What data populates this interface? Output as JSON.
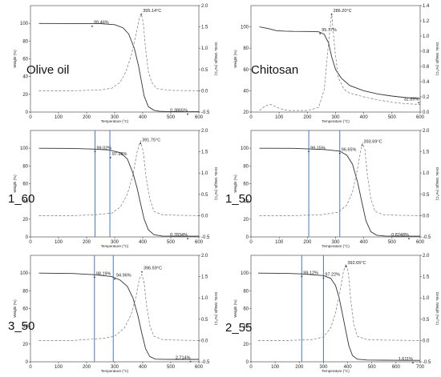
{
  "chart_data": [
    {
      "type": "line",
      "label": "Olive oil",
      "xlabel": "Temperature (°C)",
      "ylabel": "Weight (%)",
      "y2label": "Deriv. Weight (%/°C)",
      "xlim": [
        0,
        600
      ],
      "ylim": [
        0,
        120
      ],
      "y2lim": [
        -0.5,
        2.0
      ],
      "xticks": [
        "0",
        "100",
        "200",
        "300",
        "400",
        "500",
        "600"
      ],
      "yticks": [
        "0",
        "20",
        "40",
        "60",
        "80",
        "100"
      ],
      "y2ticks": [
        "-0.5",
        "0.0",
        "0.5",
        "1.0",
        "1.5",
        "2.0"
      ],
      "series": [
        {
          "axis": "left",
          "style": "solid",
          "x": [
            30,
            150,
            250,
            300,
            330,
            350,
            370,
            385,
            395,
            405,
            420,
            440,
            460,
            500,
            600
          ],
          "y": [
            99.9,
            99.8,
            99.6,
            98.5,
            95,
            88,
            72,
            52,
            35,
            18,
            6,
            2,
            0.8,
            0.4,
            0.39
          ]
        },
        {
          "axis": "right",
          "style": "dashed",
          "x": [
            30,
            150,
            250,
            290,
            320,
            340,
            360,
            375,
            388,
            395,
            402,
            410,
            420,
            432,
            450,
            500,
            600
          ],
          "y": [
            0,
            0,
            0.02,
            0.06,
            0.2,
            0.45,
            0.85,
            1.3,
            1.7,
            1.8,
            1.6,
            1.0,
            0.45,
            0.2,
            0.05,
            0.01,
            0
          ]
        }
      ],
      "annotations": [
        {
          "text": "99.46%",
          "x": 220,
          "y": 99.5
        },
        {
          "text": "395.14°C",
          "x": 395,
          "y": 113
        },
        {
          "text": "0.3865%",
          "x": 560,
          "y": 0.39
        }
      ],
      "vlines": []
    },
    {
      "type": "line",
      "label": "Chitosan",
      "xlabel": "Temperature (°C)",
      "ylabel": "Weight (%)",
      "y2label": "Deriv. Weight (%/°C)",
      "xlim": [
        0,
        600
      ],
      "ylim": [
        20,
        120
      ],
      "y2lim": [
        0,
        1.4
      ],
      "xticks": [
        "0",
        "100",
        "200",
        "300",
        "400",
        "500",
        "600"
      ],
      "yticks": [
        "20",
        "40",
        "60",
        "80",
        "100"
      ],
      "y2ticks": [
        "0.0",
        "0.2",
        "0.4",
        "0.6",
        "0.8",
        "1.0",
        "1.2",
        "1.4"
      ],
      "series": [
        {
          "axis": "left",
          "style": "solid",
          "x": [
            30,
            60,
            90,
            120,
            150,
            200,
            240,
            260,
            275,
            286,
            300,
            320,
            350,
            400,
            450,
            500,
            550,
            600
          ],
          "y": [
            100,
            98.5,
            96.5,
            96,
            95.8,
            95.7,
            95.4,
            93,
            85,
            72,
            60,
            52,
            45,
            40,
            37,
            35,
            33.5,
            32.8
          ]
        },
        {
          "axis": "right",
          "style": "dashed",
          "x": [
            30,
            50,
            70,
            100,
            130,
            200,
            240,
            260,
            275,
            286,
            298,
            310,
            330,
            350,
            400,
            450,
            500,
            550,
            600
          ],
          "y": [
            0.02,
            0.08,
            0.1,
            0.05,
            0.02,
            0.02,
            0.06,
            0.3,
            0.9,
            1.3,
            0.8,
            0.45,
            0.3,
            0.25,
            0.2,
            0.16,
            0.13,
            0.11,
            0.1
          ]
        }
      ],
      "annotations": [
        {
          "text": "95.77%",
          "x": 245,
          "y": 96
        },
        {
          "text": "286.20°C",
          "x": 286,
          "y": 114
        },
        {
          "text": "32.89%",
          "x": 595,
          "y": 31
        }
      ],
      "vlines": []
    },
    {
      "type": "line",
      "label": "1_60",
      "xlabel": "Temperature (°C)",
      "ylabel": "Weight (%)",
      "y2label": "Deriv. Weight (%/°C)",
      "xlim": [
        0,
        600
      ],
      "ylim": [
        0,
        120
      ],
      "y2lim": [
        -0.5,
        2.0
      ],
      "xticks": [
        "0",
        "100",
        "200",
        "300",
        "400",
        "500",
        "600"
      ],
      "yticks": [
        "0",
        "20",
        "40",
        "60",
        "80",
        "100"
      ],
      "y2ticks": [
        "-0.5",
        "0.0",
        "0.5",
        "1.0",
        "1.5",
        "2.0"
      ],
      "series": [
        {
          "axis": "left",
          "style": "solid",
          "x": [
            30,
            150,
            230,
            280,
            320,
            345,
            365,
            380,
            392,
            405,
            420,
            440,
            470,
            520,
            600
          ],
          "y": [
            100,
            99.8,
            99,
            98,
            95,
            88,
            72,
            55,
            38,
            20,
            8,
            2.5,
            1,
            0.8,
            0.78
          ]
        },
        {
          "axis": "right",
          "style": "dashed",
          "x": [
            30,
            150,
            230,
            290,
            320,
            345,
            365,
            380,
            392,
            402,
            412,
            425,
            440,
            470,
            520,
            600
          ],
          "y": [
            0,
            0,
            0.02,
            0.06,
            0.2,
            0.5,
            0.95,
            1.5,
            1.75,
            1.5,
            0.9,
            0.4,
            0.1,
            0.02,
            0.01,
            0
          ]
        }
      ],
      "annotations": [
        {
          "text": "99.02%",
          "x": 230,
          "y": 99
        },
        {
          "text": "97.98%",
          "x": 285,
          "y": 92
        },
        {
          "text": "391.75°C",
          "x": 392,
          "y": 108
        },
        {
          "text": "0.7834%",
          "x": 560,
          "y": 0.78
        }
      ],
      "vlines": [
        230,
        283
      ]
    },
    {
      "type": "line",
      "label": "1_50",
      "xlabel": "Temperature (°C)",
      "ylabel": "Weight (%)",
      "y2label": "Deriv. Weight (%/°C)",
      "xlim": [
        0,
        600
      ],
      "ylim": [
        0,
        120
      ],
      "y2lim": [
        -0.5,
        2.0
      ],
      "xticks": [
        "0",
        "100",
        "200",
        "300",
        "400",
        "500",
        "600"
      ],
      "yticks": [
        "0",
        "20",
        "40",
        "60",
        "80",
        "100"
      ],
      "y2ticks": [
        "-0.5",
        "0.0",
        "0.5",
        "1.0",
        "1.5",
        "2.0"
      ],
      "series": [
        {
          "axis": "left",
          "style": "solid",
          "x": [
            30,
            150,
            205,
            260,
            315,
            340,
            360,
            378,
            394,
            408,
            425,
            445,
            475,
            520,
            600
          ],
          "y": [
            100,
            99.9,
            99.2,
            98.5,
            96.7,
            92,
            82,
            62,
            38,
            18,
            6,
            2,
            1,
            0.85,
            0.82
          ]
        },
        {
          "axis": "right",
          "style": "dashed",
          "x": [
            30,
            150,
            250,
            310,
            340,
            360,
            378,
            390,
            396,
            404,
            412,
            425,
            440,
            470,
            520,
            600
          ],
          "y": [
            0,
            0,
            0.02,
            0.08,
            0.25,
            0.55,
            1.1,
            1.55,
            1.7,
            1.55,
            1.0,
            0.4,
            0.1,
            0.02,
            0.01,
            0
          ]
        }
      ],
      "annotations": [
        {
          "text": "99.15%",
          "x": 205,
          "y": 99
        },
        {
          "text": "96.65%",
          "x": 315,
          "y": 97
        },
        {
          "text": "393.69°C",
          "x": 394,
          "y": 106
        },
        {
          "text": "0.8248%",
          "x": 560,
          "y": 0.82
        }
      ],
      "vlines": [
        205,
        315
      ]
    },
    {
      "type": "line",
      "label": "3_50",
      "xlabel": "Temperature (°C)",
      "ylabel": "Weight (%)",
      "y2label": "Deriv. Weight (%/°C)",
      "xlim": [
        0,
        600
      ],
      "ylim": [
        0,
        120
      ],
      "y2lim": [
        -0.5,
        2.0
      ],
      "xticks": [
        "0",
        "100",
        "200",
        "300",
        "400",
        "500",
        "600"
      ],
      "yticks": [
        "0",
        "20",
        "40",
        "60",
        "80",
        "100"
      ],
      "y2ticks": [
        "-0.5",
        "0.0",
        "0.5",
        "1.0",
        "1.5",
        "2.0"
      ],
      "series": [
        {
          "axis": "left",
          "style": "solid",
          "x": [
            30,
            150,
            228,
            290,
            320,
            345,
            365,
            383,
            397,
            410,
            425,
            445,
            475,
            520,
            600
          ],
          "y": [
            100,
            99.5,
            98.2,
            96,
            92,
            85,
            72,
            52,
            32,
            15,
            6,
            3,
            2.8,
            2.75,
            2.71
          ]
        },
        {
          "axis": "right",
          "style": "dashed",
          "x": [
            30,
            150,
            260,
            300,
            335,
            358,
            375,
            388,
            397,
            405,
            413,
            425,
            440,
            470,
            520,
            600
          ],
          "y": [
            0,
            0,
            0.05,
            0.1,
            0.3,
            0.6,
            1.0,
            1.45,
            1.55,
            1.35,
            0.85,
            0.35,
            0.1,
            0.02,
            0.01,
            0
          ]
        }
      ],
      "annotations": [
        {
          "text": "98.19%",
          "x": 228,
          "y": 98
        },
        {
          "text": "94.96%",
          "x": 300,
          "y": 96
        },
        {
          "text": "396.59°C",
          "x": 397,
          "y": 104
        },
        {
          "text": "2.714%",
          "x": 570,
          "y": 3
        }
      ],
      "vlines": [
        228,
        295
      ]
    },
    {
      "type": "line",
      "label": "2_55",
      "xlabel": "Temperature (°C)",
      "ylabel": "Weight (%)",
      "y2label": "Deriv. Weight (%/°C)",
      "xlim": [
        0,
        700
      ],
      "ylim": [
        0,
        120
      ],
      "y2lim": [
        -0.5,
        2.0
      ],
      "xticks": [
        "0",
        "100",
        "200",
        "300",
        "400",
        "500",
        "600",
        "700"
      ],
      "yticks": [
        "0",
        "20",
        "40",
        "60",
        "80",
        "100"
      ],
      "y2ticks": [
        "-0.5",
        "0.0",
        "0.5",
        "1.0",
        "1.5",
        "2.0"
      ],
      "series": [
        {
          "axis": "left",
          "style": "solid",
          "x": [
            30,
            150,
            210,
            300,
            330,
            350,
            365,
            380,
            393,
            405,
            420,
            440,
            480,
            550,
            650,
            700
          ],
          "y": [
            100,
            99.6,
            99.1,
            97.2,
            94,
            86,
            72,
            52,
            34,
            18,
            7,
            3,
            2,
            1.8,
            1.6,
            1.61
          ]
        },
        {
          "axis": "right",
          "style": "dashed",
          "x": [
            30,
            150,
            250,
            300,
            330,
            350,
            368,
            382,
            393,
            403,
            412,
            425,
            440,
            480,
            550,
            700
          ],
          "y": [
            0,
            0,
            0.02,
            0.08,
            0.3,
            0.65,
            1.15,
            1.6,
            1.8,
            1.6,
            1.0,
            0.4,
            0.1,
            0.02,
            0.01,
            0
          ]
        }
      ],
      "annotations": [
        {
          "text": "99.12%",
          "x": 210,
          "y": 99
        },
        {
          "text": "97.22%",
          "x": 300,
          "y": 97
        },
        {
          "text": "392.65°C",
          "x": 393,
          "y": 110
        },
        {
          "text": "1.611%",
          "x": 670,
          "y": 1.6
        }
      ],
      "vlines": [
        210,
        300
      ]
    }
  ]
}
